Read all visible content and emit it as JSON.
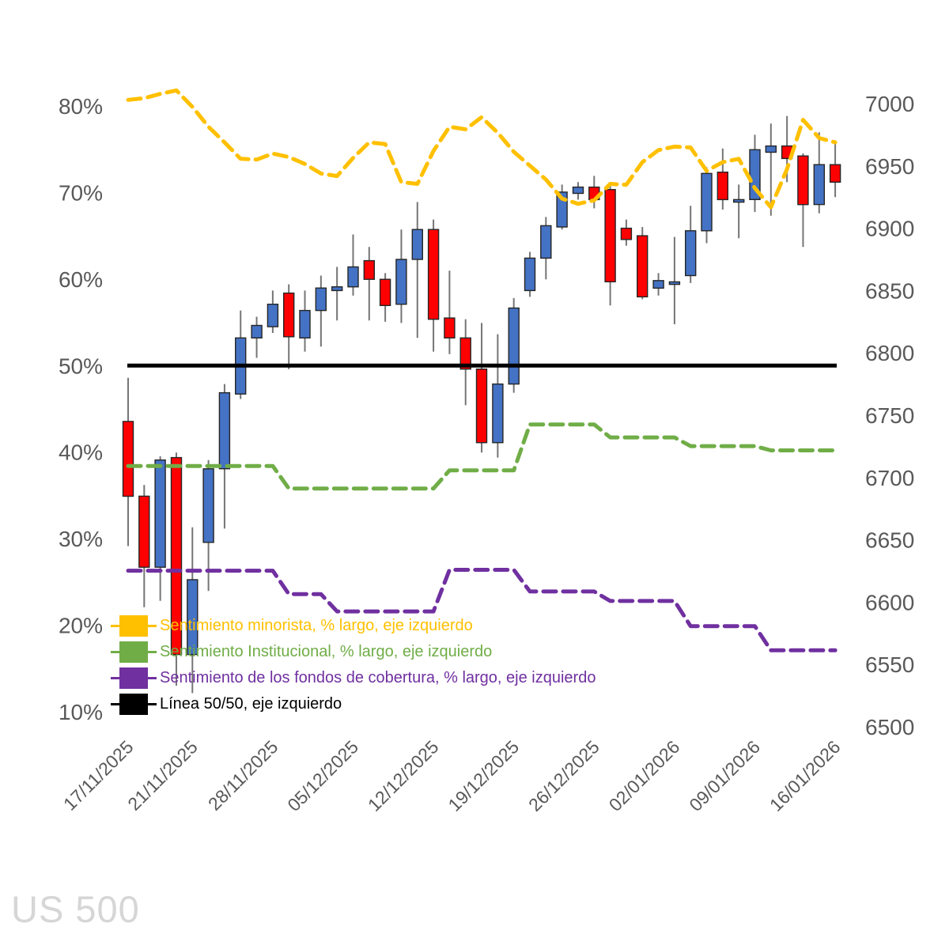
{
  "title": "US 500",
  "colors": {
    "background": "#FFFFFF",
    "axis_text": "#595959",
    "watermark": "#D6D6D6",
    "wick": "#757575",
    "candle_border": "#262626",
    "retail": "#FFC000",
    "institutional": "#70AD47",
    "hedge_funds": "#7030A0",
    "line_5050": "#000000",
    "candle_up": "#4472C4",
    "candle_down": "#FF0000"
  },
  "legend": {
    "items": [
      {
        "key": "retail",
        "label": "Sentimiento minorista, % largo, eje izquierdo",
        "color": "#FFC000"
      },
      {
        "key": "institutional",
        "label": "Sentimiento Institucional, % largo, eje izquierdo",
        "color": "#70AD47"
      },
      {
        "key": "hedge_funds",
        "label": "Sentimiento de los fondos de cobertura, % largo, eje izquierdo",
        "color": "#7030A0"
      },
      {
        "key": "line_5050",
        "label": "Línea 50/50, eje izquierdo",
        "color": "#000000"
      }
    ]
  },
  "axes": {
    "left": {
      "unit": "%",
      "labels": [
        "80%",
        "70%",
        "60%",
        "50%",
        "40%",
        "30%",
        "20%",
        "10%"
      ],
      "values": [
        80,
        70,
        60,
        50,
        40,
        30,
        20,
        10
      ]
    },
    "right": {
      "labels": [
        "7000",
        "6950",
        "6900",
        "6850",
        "6800",
        "6750",
        "6700",
        "6650",
        "6600",
        "6550",
        "6500"
      ],
      "values": [
        7000,
        6950,
        6900,
        6850,
        6800,
        6750,
        6700,
        6650,
        6600,
        6550,
        6500
      ]
    },
    "x": {
      "tick_labels": [
        "17/11/2025",
        "21/11/2025",
        "28/11/2025",
        "05/12/2025",
        "12/12/2025",
        "19/12/2025",
        "26/12/2025",
        "02/01/2026",
        "09/01/2026",
        "16/01/2026"
      ],
      "tick_indices": [
        0,
        4,
        9,
        14,
        19,
        24,
        29,
        34,
        39,
        44
      ]
    }
  },
  "chart_data": {
    "type": "candlestick+lines",
    "title": "US 500",
    "left_axis": {
      "min": 10,
      "max": 80,
      "unit": "%"
    },
    "right_axis": {
      "min": 6500,
      "max": 7000
    },
    "categories": [
      "17/11/2025",
      "18/11/2025",
      "19/11/2025",
      "20/11/2025",
      "21/11/2025",
      "24/11/2025",
      "25/11/2025",
      "26/11/2025",
      "27/11/2025",
      "28/11/2025",
      "01/12/2025",
      "02/12/2025",
      "03/12/2025",
      "04/12/2025",
      "05/12/2025",
      "08/12/2025",
      "09/12/2025",
      "10/12/2025",
      "11/12/2025",
      "12/12/2025",
      "15/12/2025",
      "16/12/2025",
      "17/12/2025",
      "18/12/2025",
      "19/12/2025",
      "22/12/2025",
      "23/12/2025",
      "24/12/2025",
      "25/12/2025",
      "26/12/2025",
      "29/12/2025",
      "30/12/2025",
      "31/12/2025",
      "01/01/2026",
      "02/01/2026",
      "05/01/2026",
      "06/01/2026",
      "07/01/2026",
      "08/01/2026",
      "09/01/2026",
      "12/01/2026",
      "13/01/2026",
      "14/01/2026",
      "15/01/2026",
      "16/01/2026"
    ],
    "candles": {
      "name": "US 500",
      "axis": "right",
      "up_color": "#4472C4",
      "down_color": "#FF0000",
      "open": [
        6745,
        6685,
        6628,
        6716,
        6558,
        6648,
        6707,
        6767,
        6812,
        6821,
        6848,
        6812,
        6834,
        6850,
        6853,
        6874,
        6859,
        6839,
        6875,
        6899,
        6828,
        6812,
        6787,
        6728,
        6775,
        6850,
        6876,
        6901,
        6928,
        6933,
        6931,
        6900,
        6894,
        6852,
        6855,
        6862,
        6898,
        6945,
        6921,
        6923,
        6961,
        6966,
        6958,
        6919,
        6951
      ],
      "high": [
        6780,
        6694,
        6717,
        6720,
        6660,
        6714,
        6775,
        6834,
        6829,
        6850,
        6855,
        6850,
        6862,
        6869,
        6895,
        6885,
        6864,
        6899,
        6921,
        6907,
        6866,
        6827,
        6824,
        6815,
        6844,
        6881,
        6909,
        6935,
        6937,
        6942,
        6937,
        6907,
        6901,
        6864,
        6893,
        6918,
        6949,
        6964,
        6935,
        6975,
        6984,
        6990,
        6960,
        6977,
        6968
      ],
      "low": [
        6645,
        6596,
        6601,
        6533,
        6527,
        6609,
        6659,
        6763,
        6796,
        6816,
        6787,
        6801,
        6805,
        6826,
        6846,
        6826,
        6825,
        6824,
        6812,
        6801,
        6799,
        6758,
        6720,
        6716,
        6768,
        6845,
        6859,
        6899,
        6923,
        6916,
        6838,
        6886,
        6843,
        6846,
        6823,
        6856,
        6888,
        6915,
        6892,
        6913,
        6910,
        6937,
        6885,
        6912,
        6925
      ],
      "close": [
        6685,
        6628,
        6714,
        6558,
        6618,
        6707,
        6768,
        6812,
        6822,
        6839,
        6813,
        6834,
        6852,
        6853,
        6869,
        6859,
        6838,
        6875,
        6899,
        6827,
        6812,
        6787,
        6728,
        6775,
        6836,
        6876,
        6902,
        6929,
        6933,
        6923,
        6857,
        6891,
        6845,
        6858,
        6857,
        6898,
        6944,
        6923,
        6923,
        6963,
        6966,
        6956,
        6919,
        6951,
        6937
      ]
    },
    "series": [
      {
        "name": "Sentimiento minorista, % largo, eje izquierdo",
        "type": "line",
        "dash": true,
        "axis": "left",
        "color": "#FFC000",
        "values": [
          80.7,
          80.9,
          81.4,
          81.8,
          79.9,
          77.6,
          75.8,
          73.9,
          73.8,
          74.5,
          74.1,
          73.3,
          72.2,
          71.9,
          74.0,
          75.8,
          75.6,
          71.2,
          71.0,
          74.8,
          77.6,
          77.3,
          78.7,
          76.9,
          74.7,
          73.1,
          71.5,
          69.3,
          68.7,
          69.1,
          71.0,
          70.9,
          73.5,
          74.9,
          75.3,
          75.2,
          72.5,
          73.5,
          73.9,
          70.5,
          68.3,
          72.7,
          78.4,
          76.3,
          75.8
        ]
      },
      {
        "name": "Sentimiento Institucional, % largo, eje izquierdo",
        "type": "line",
        "dash": true,
        "axis": "left",
        "color": "#70AD47",
        "values": [
          38.4,
          38.4,
          38.4,
          38.4,
          38.4,
          38.4,
          38.4,
          38.4,
          38.4,
          38.4,
          35.8,
          35.8,
          35.8,
          35.8,
          35.8,
          35.8,
          35.8,
          35.8,
          35.8,
          35.8,
          37.9,
          37.9,
          37.9,
          37.9,
          37.9,
          43.2,
          43.2,
          43.2,
          43.2,
          43.2,
          41.7,
          41.7,
          41.7,
          41.7,
          41.7,
          40.7,
          40.7,
          40.7,
          40.7,
          40.7,
          40.2,
          40.2,
          40.2,
          40.2,
          40.2
        ]
      },
      {
        "name": "Sentimiento de los fondos de cobertura, % largo, eje izquierdo",
        "type": "line",
        "dash": true,
        "axis": "left",
        "color": "#7030A0",
        "values": [
          26.3,
          26.3,
          26.3,
          26.3,
          26.3,
          26.3,
          26.3,
          26.3,
          26.3,
          26.3,
          23.6,
          23.6,
          23.6,
          21.6,
          21.6,
          21.6,
          21.6,
          21.6,
          21.6,
          21.6,
          26.4,
          26.4,
          26.4,
          26.4,
          26.4,
          23.9,
          23.9,
          23.9,
          23.9,
          23.9,
          22.8,
          22.8,
          22.8,
          22.8,
          22.8,
          19.9,
          19.9,
          19.9,
          19.9,
          19.9,
          17.1,
          17.1,
          17.1,
          17.1,
          17.1
        ]
      },
      {
        "name": "Línea 50/50, eje izquierdo",
        "type": "hline",
        "axis": "left",
        "color": "#000000",
        "value": 50
      }
    ]
  }
}
